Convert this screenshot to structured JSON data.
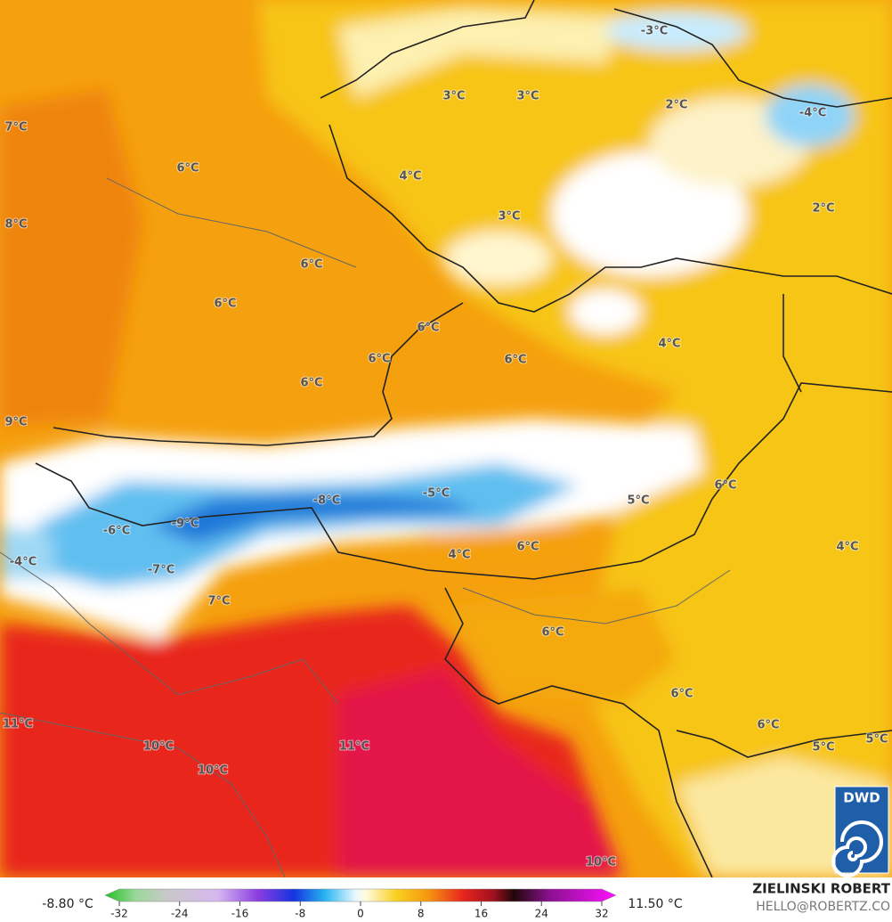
{
  "map": {
    "labels": [
      "-3°C",
      "3°C",
      "3°C",
      "2°C",
      "-4°C",
      "7°C",
      "6°C",
      "4°C",
      "3°C",
      "2°C",
      "8°C",
      "6°C",
      "6°C",
      "6°C",
      "4°C",
      "6°C",
      "6°C",
      "6°C",
      "9°C",
      "6°C",
      "-5°C",
      "5°C",
      "-8°C",
      "-9°C",
      "-6°C",
      "6°C",
      "4°C",
      "4°C",
      "-4°C",
      "-7°C",
      "7°C",
      "6°C",
      "6°C",
      "11°C",
      "6°C",
      "5°C",
      "11°C",
      "10°C",
      "5°C",
      "10°C",
      "10°C"
    ],
    "logo": "DWD"
  },
  "colorbar": {
    "min_label": "-8.80 °C",
    "max_label": "11.50 °C",
    "ticks": [
      -32,
      -24,
      -16,
      -8,
      0,
      8,
      16,
      24,
      32
    ]
  },
  "credit": {
    "author": "ZIELINSKI ROBERT",
    "contact": "HELLO@ROBERTZ.CO"
  }
}
